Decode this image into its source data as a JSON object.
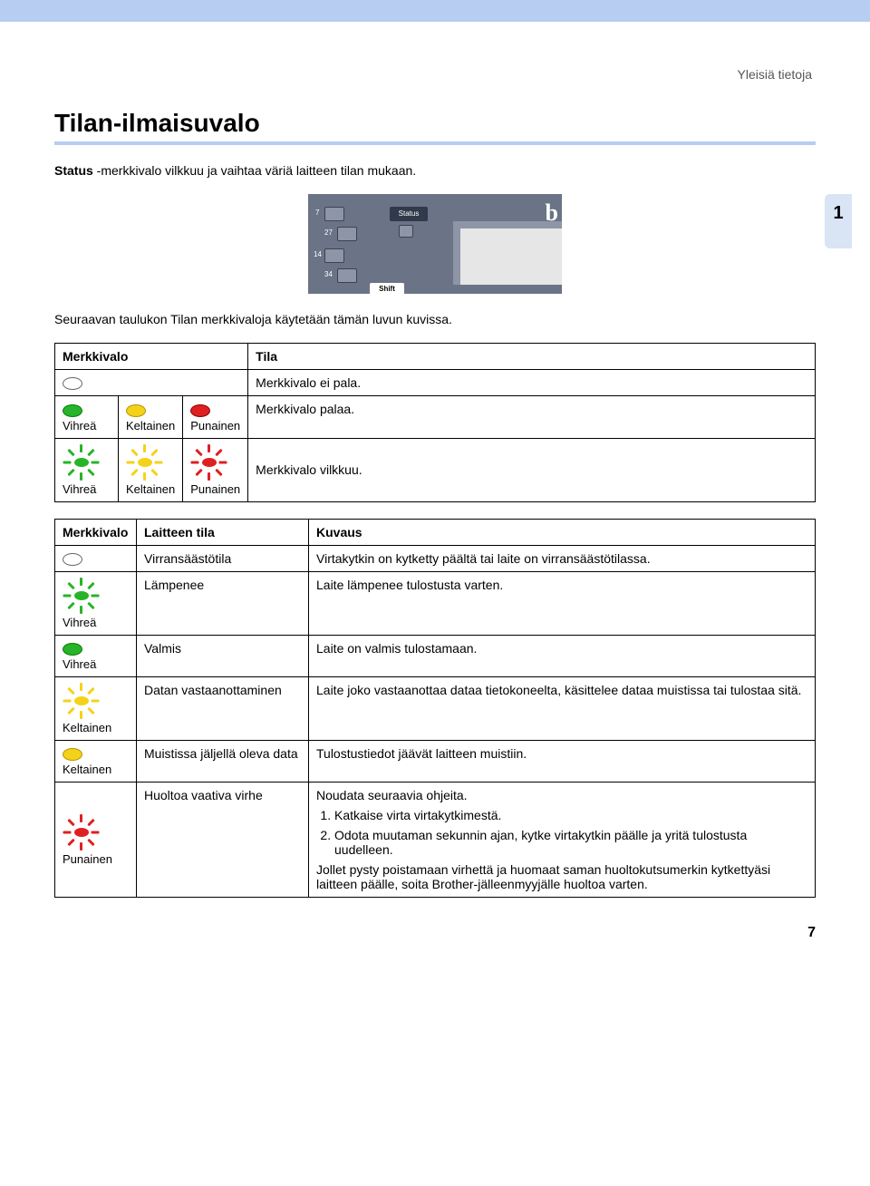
{
  "header_right": "Yleisiä tietoja",
  "side_tab": "1",
  "section_title": "Tilan-ilmaisuvalo",
  "intro_before": "Status",
  "intro_after": " -merkkivalo vilkkuu ja vaihtaa väriä laitteen tilan mukaan.",
  "device": {
    "key_nums": [
      "7",
      "27",
      "14",
      "34"
    ],
    "status_label": "Status",
    "shift_label": "Shift"
  },
  "caption": "Seuraavan taulukon Tilan merkkivaloja käytetään tämän luvun kuvissa.",
  "table1": {
    "h_merkkivalo": "Merkkivalo",
    "h_tila": "Tila",
    "green": "Vihreä",
    "yellow": "Keltainen",
    "red": "Punainen",
    "row1": "Merkkivalo ei pala.",
    "row2": "Merkkivalo palaa.",
    "row3": "Merkkivalo vilkkuu."
  },
  "table2": {
    "h_merkkivalo": "Merkkivalo",
    "h_laitteen": "Laitteen tila",
    "h_kuvaus": "Kuvaus",
    "rows": [
      {
        "label": "",
        "state": "Virransäästötila",
        "desc": "Virtakytkin on kytketty päältä tai laite on virransäästötilassa."
      },
      {
        "label": "Vihreä",
        "state": "Lämpenee",
        "desc": "Laite lämpenee tulostusta varten."
      },
      {
        "label": "Vihreä",
        "state": "Valmis",
        "desc": "Laite on valmis tulostamaan."
      },
      {
        "label": "Keltainen",
        "state": "Datan vastaanottaminen",
        "desc": "Laite joko vastaanottaa dataa tietokoneelta, käsittelee dataa muistissa tai tulostaa sitä."
      },
      {
        "label": "Keltainen",
        "state": "Muistissa jäljellä oleva data",
        "desc": "Tulostustiedot jäävät laitteen muistiin."
      },
      {
        "label": "Punainen",
        "state": "Huoltoa vaativa virhe",
        "desc_intro": "Noudata seuraavia ohjeita.",
        "steps": [
          "Katkaise virta virtakytkimestä.",
          "Odota muutaman sekunnin ajan, kytke virtakytkin päälle ja yritä tulostusta uudelleen."
        ],
        "desc_after": "Jollet pysty poistamaan virhettä ja huomaat saman huoltokutsumerkin kytkettyäsi laitteen päälle, soita Brother-jälleenmyyjälle huoltoa varten."
      }
    ]
  },
  "colors": {
    "banner": "#b7cdf2",
    "underline": "#b7cdf2",
    "side_tab": "#d9e4f5",
    "device_bg": "#6a7486",
    "green": "#28b428",
    "yellow": "#f5d21a",
    "red": "#e02020"
  },
  "page_number": "7"
}
